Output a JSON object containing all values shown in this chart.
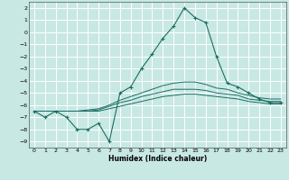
{
  "xlabel": "Humidex (Indice chaleur)",
  "xlim": [
    -0.5,
    23.5
  ],
  "ylim": [
    -9.5,
    2.5
  ],
  "yticks": [
    2,
    1,
    0,
    -1,
    -2,
    -3,
    -4,
    -5,
    -6,
    -7,
    -8,
    -9
  ],
  "xticks": [
    0,
    1,
    2,
    3,
    4,
    5,
    6,
    7,
    8,
    9,
    10,
    11,
    12,
    13,
    14,
    15,
    16,
    17,
    18,
    19,
    20,
    21,
    22,
    23
  ],
  "bg_color": "#c8e8e4",
  "grid_color": "#ffffff",
  "line_color": "#1a6e64",
  "main_line": {
    "x": [
      0,
      1,
      2,
      3,
      4,
      5,
      6,
      7,
      8,
      9,
      10,
      11,
      12,
      13,
      14,
      15,
      16,
      17,
      18,
      19,
      20,
      21,
      22,
      23
    ],
    "y": [
      -6.5,
      -7.0,
      -6.5,
      -7.0,
      -8.0,
      -8.0,
      -7.5,
      -9.0,
      -5.0,
      -4.5,
      -3.0,
      -1.8,
      -0.5,
      0.5,
      2.0,
      1.2,
      0.8,
      -2.0,
      -4.2,
      -4.5,
      -5.0,
      -5.5,
      -5.8,
      -5.8
    ]
  },
  "flat_lines": [
    {
      "x": [
        0,
        1,
        2,
        3,
        4,
        5,
        6,
        7,
        8,
        9,
        10,
        11,
        12,
        13,
        14,
        15,
        16,
        17,
        18,
        19,
        20,
        21,
        22,
        23
      ],
      "y": [
        -6.5,
        -6.5,
        -6.5,
        -6.5,
        -6.5,
        -6.5,
        -6.5,
        -6.3,
        -6.1,
        -5.9,
        -5.7,
        -5.5,
        -5.3,
        -5.2,
        -5.1,
        -5.1,
        -5.2,
        -5.3,
        -5.4,
        -5.5,
        -5.7,
        -5.8,
        -5.9,
        -5.9
      ]
    },
    {
      "x": [
        0,
        1,
        2,
        3,
        4,
        5,
        6,
        7,
        8,
        9,
        10,
        11,
        12,
        13,
        14,
        15,
        16,
        17,
        18,
        19,
        20,
        21,
        22,
        23
      ],
      "y": [
        -6.5,
        -6.5,
        -6.5,
        -6.5,
        -6.5,
        -6.5,
        -6.4,
        -6.1,
        -5.8,
        -5.6,
        -5.3,
        -5.1,
        -4.9,
        -4.7,
        -4.7,
        -4.7,
        -4.8,
        -5.0,
        -5.1,
        -5.2,
        -5.5,
        -5.6,
        -5.7,
        -5.7
      ]
    },
    {
      "x": [
        0,
        1,
        2,
        3,
        4,
        5,
        6,
        7,
        8,
        9,
        10,
        11,
        12,
        13,
        14,
        15,
        16,
        17,
        18,
        19,
        20,
        21,
        22,
        23
      ],
      "y": [
        -6.5,
        -6.5,
        -6.5,
        -6.5,
        -6.5,
        -6.4,
        -6.3,
        -6.0,
        -5.6,
        -5.3,
        -5.0,
        -4.7,
        -4.4,
        -4.2,
        -4.1,
        -4.1,
        -4.3,
        -4.6,
        -4.7,
        -5.0,
        -5.2,
        -5.4,
        -5.5,
        -5.5
      ]
    }
  ]
}
